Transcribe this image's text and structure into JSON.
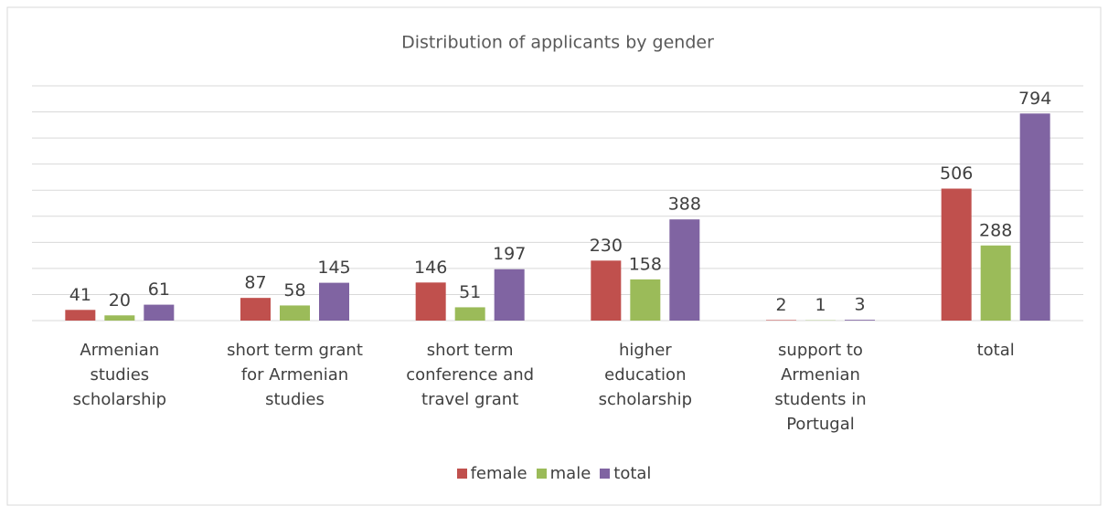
{
  "chart_data": {
    "type": "bar",
    "title": "Distribution of applicants by gender",
    "categories": [
      "Armenian studies scholarship",
      "short term grant for Armenian studies",
      "short term conference and travel grant",
      "higher education scholarship",
      "support to Armenian students in Portugal",
      "total"
    ],
    "series": [
      {
        "name": "female",
        "color": "#c0504d",
        "values": [
          41,
          87,
          146,
          230,
          2,
          506
        ]
      },
      {
        "name": "male",
        "color": "#9bbb59",
        "values": [
          20,
          58,
          51,
          158,
          1,
          288
        ]
      },
      {
        "name": "total",
        "color": "#8064a2",
        "values": [
          61,
          145,
          197,
          388,
          3,
          794
        ]
      }
    ],
    "ylim": [
      0,
      900
    ],
    "yticks": [
      0,
      100,
      200,
      300,
      400,
      500,
      600,
      700,
      800,
      900
    ],
    "grid": true
  }
}
